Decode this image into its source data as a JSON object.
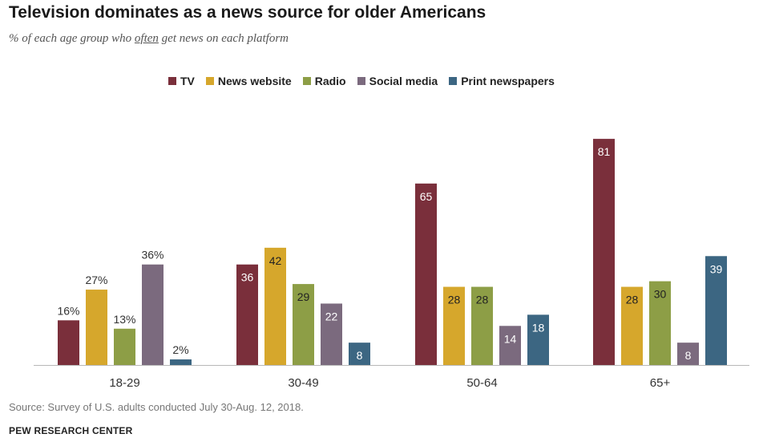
{
  "title": "Television dominates as a news source for older Americans",
  "subtitle": {
    "before": "% of each age group who ",
    "emphasis": "often",
    "after": " get news on each platform"
  },
  "source": "Source: Survey of U.S. adults conducted July 30-Aug. 12, 2018.",
  "org": "PEW RESEARCH CENTER",
  "chart_data": {
    "type": "bar",
    "categories": [
      "18-29",
      "30-49",
      "50-64",
      "65+"
    ],
    "series": [
      {
        "name": "TV",
        "color": "#7a2f3b",
        "values": [
          16,
          36,
          65,
          81
        ]
      },
      {
        "name": "News website",
        "color": "#d6a72c",
        "values": [
          27,
          42,
          28,
          28
        ]
      },
      {
        "name": "Radio",
        "color": "#8d9e46",
        "values": [
          13,
          29,
          28,
          30
        ]
      },
      {
        "name": "Social media",
        "color": "#7b6a7e",
        "values": [
          36,
          22,
          14,
          8
        ]
      },
      {
        "name": "Print newspapers",
        "color": "#3c6682",
        "values": [
          2,
          8,
          18,
          39
        ]
      }
    ],
    "value_labels": [
      [
        "16%",
        "27%",
        "13%",
        "36%",
        "2%"
      ],
      [
        "36",
        "42",
        "29",
        "22",
        "8"
      ],
      [
        "65",
        "28",
        "28",
        "14",
        "18"
      ],
      [
        "81",
        "28",
        "30",
        "8",
        "39"
      ]
    ],
    "legend_position": "top",
    "grid": false
  }
}
